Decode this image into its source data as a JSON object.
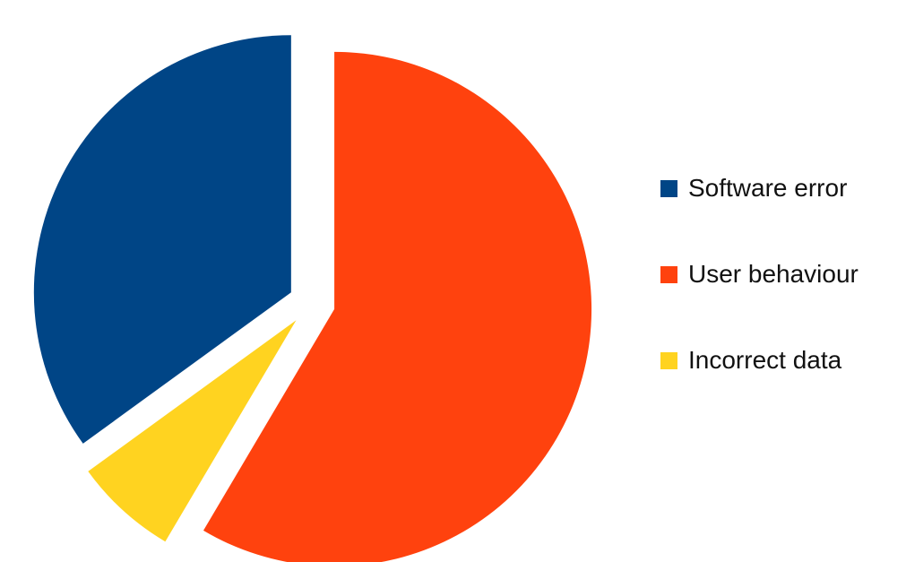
{
  "chart_data": {
    "type": "pie",
    "categories": [
      "Software error",
      "User behaviour",
      "Incorrect data"
    ],
    "values": [
      35,
      58.5,
      6.5
    ],
    "colors": [
      "#004586",
      "#ff420e",
      "#ffd320"
    ],
    "exploded": true,
    "legend_position": "right",
    "title": "",
    "grid": false
  }
}
